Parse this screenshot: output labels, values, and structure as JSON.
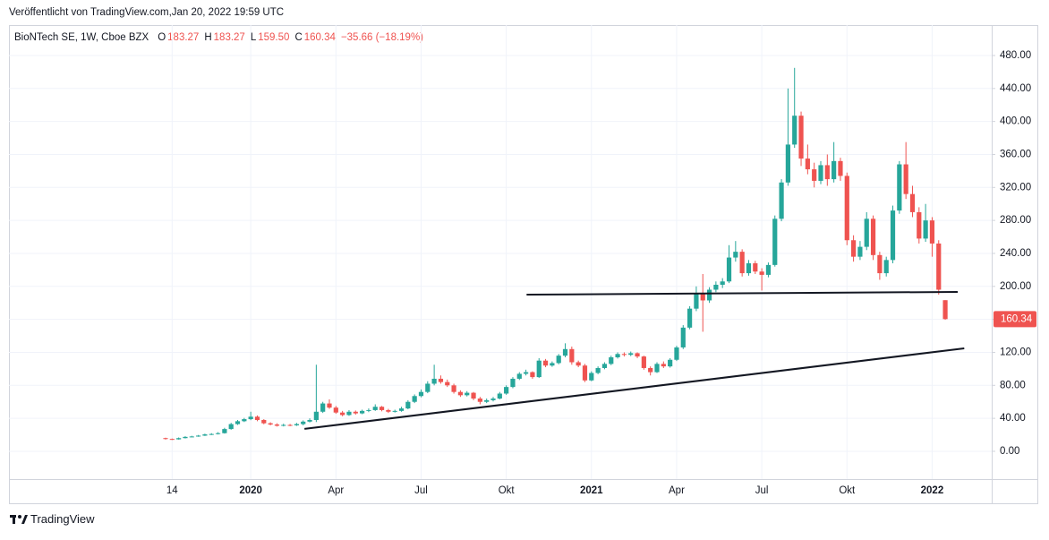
{
  "header": "Veröffentlicht von TradingView.com,Jan 20, 2022 19:59 UTC",
  "footer": "TradingView",
  "chart_data": {
    "type": "candlestick",
    "legend": {
      "name": "BioNTech SE, 1W, Cboe BZX",
      "o": "O",
      "open": "183.27",
      "h": "H",
      "high": "183.27",
      "l": "L",
      "low": "159.50",
      "c": "C",
      "close": "160.34",
      "change": "−35.66 (−18.19%)"
    },
    "categories": [
      null,
      "14",
      null,
      null,
      null,
      null,
      null,
      null,
      null,
      null,
      null,
      null,
      null,
      "2020",
      null,
      null,
      null,
      null,
      null,
      null,
      null,
      null,
      null,
      null,
      null,
      null,
      "Apr",
      null,
      null,
      null,
      null,
      null,
      null,
      null,
      null,
      null,
      null,
      null,
      null,
      "Jul",
      null,
      null,
      null,
      null,
      null,
      null,
      null,
      null,
      null,
      null,
      null,
      null,
      "Okt",
      null,
      null,
      null,
      null,
      null,
      null,
      null,
      null,
      null,
      null,
      null,
      null,
      "2021",
      null,
      null,
      null,
      null,
      null,
      null,
      null,
      null,
      null,
      null,
      null,
      null,
      "Apr",
      null,
      null,
      null,
      null,
      null,
      null,
      null,
      null,
      null,
      null,
      null,
      null,
      "Jul",
      null,
      null,
      null,
      null,
      null,
      null,
      null,
      null,
      null,
      null,
      null,
      null,
      "Okt",
      null,
      null,
      null,
      null,
      null,
      null,
      null,
      null,
      null,
      null,
      null,
      null,
      "2022",
      null,
      null
    ],
    "open": [
      16.0,
      15.0,
      14.5,
      16.0,
      17.5,
      18.0,
      19.0,
      20.5,
      21.0,
      22.0,
      27.0,
      33.0,
      36.5,
      39.0,
      42.0,
      38.0,
      34.0,
      32.5,
      31.0,
      32.0,
      31.5,
      33.0,
      36.0,
      38.0,
      48.0,
      58.0,
      53.0,
      47.0,
      44.0,
      48.0,
      46.0,
      49.0,
      50.0,
      54.0,
      50.0,
      48.0,
      49.0,
      52.0,
      60.0,
      67.0,
      72.0,
      82.0,
      88.0,
      84.0,
      80.0,
      72.0,
      68.0,
      71.0,
      64.0,
      60.0,
      62.0,
      64.0,
      70.0,
      78.0,
      88.0,
      94.0,
      96.0,
      90.0,
      110.0,
      104.0,
      107.0,
      116.0,
      124.0,
      108.0,
      104.0,
      86.0,
      95.0,
      101.0,
      106.0,
      114.0,
      118.0,
      117.0,
      119.0,
      115.0,
      101.0,
      96.0,
      106.0,
      103.0,
      111.0,
      126.0,
      150.0,
      173.0,
      192.0,
      183.0,
      196.0,
      202.0,
      206.0,
      235.0,
      242.0,
      216.0,
      228.0,
      218.0,
      214.0,
      226.0,
      282.0,
      326.0,
      372.0,
      407.0,
      355.0,
      342.0,
      328.0,
      347.0,
      330.0,
      352.0,
      334.0,
      256.0,
      236.0,
      248.0,
      282.0,
      238.0,
      216.0,
      232.0,
      292.0,
      348.0,
      312.0,
      290.0,
      258.0,
      280.0,
      252.0,
      183.27
    ],
    "high": [
      16.5,
      15.5,
      16.8,
      18.3,
      18.8,
      19.8,
      21.4,
      22.0,
      23.2,
      28.5,
      34.5,
      38.0,
      40.5,
      48.0,
      43.5,
      39.0,
      35.2,
      34.0,
      33.5,
      33.2,
      34.5,
      37.5,
      40.0,
      105.0,
      60.0,
      63.0,
      55.0,
      49.0,
      50.0,
      49.5,
      50.5,
      52.0,
      57.0,
      55.0,
      51.5,
      50.5,
      54.0,
      62.0,
      69.0,
      75.0,
      85.0,
      105.0,
      92.0,
      87.0,
      82.0,
      74.0,
      73.0,
      72.0,
      66.0,
      64.0,
      66.0,
      72.0,
      80.0,
      90.0,
      96.0,
      99.0,
      97.0,
      113.0,
      112.0,
      109.0,
      118.0,
      131.0,
      127.0,
      110.0,
      106.0,
      97.0,
      103.0,
      108.0,
      116.0,
      120.0,
      120.0,
      121.0,
      120.0,
      116.0,
      103.0,
      108.0,
      109.0,
      113.0,
      128.0,
      153.0,
      176.0,
      200.0,
      215.0,
      199.0,
      206.0,
      210.0,
      250.0,
      255.0,
      245.0,
      232.0,
      231.0,
      222.0,
      229.0,
      286.0,
      330.0,
      440.0,
      465.0,
      412.0,
      372.0,
      350.0,
      352.0,
      360.0,
      375.0,
      356.0,
      338.0,
      262.0,
      255.0,
      290.0,
      286.0,
      242.0,
      236.0,
      298.0,
      352.0,
      375.0,
      322.0,
      296.0,
      300.0,
      284.0,
      256.0,
      183.27
    ],
    "low": [
      14.2,
      13.8,
      14.2,
      15.6,
      17.0,
      17.6,
      18.6,
      19.8,
      20.4,
      21.5,
      26.2,
      32.0,
      35.5,
      37.8,
      36.5,
      32.8,
      31.5,
      30.0,
      30.2,
      30.5,
      30.8,
      31.5,
      35.0,
      35.5,
      46.5,
      51.5,
      45.5,
      42.5,
      43.0,
      44.5,
      45.0,
      47.5,
      49.0,
      48.5,
      46.5,
      47.0,
      48.0,
      51.0,
      58.5,
      65.5,
      70.5,
      80.0,
      82.0,
      78.0,
      70.0,
      66.0,
      66.5,
      62.0,
      57.0,
      58.5,
      60.5,
      63.0,
      68.5,
      76.5,
      86.5,
      92.0,
      88.0,
      89.0,
      102.0,
      102.5,
      105.5,
      114.0,
      105.0,
      102.0,
      84.0,
      85.0,
      93.5,
      99.5,
      104.5,
      112.5,
      115.0,
      115.5,
      113.0,
      99.0,
      92.0,
      95.0,
      101.0,
      101.5,
      109.5,
      124.0,
      148.0,
      170.0,
      145.0,
      180.0,
      193.0,
      198.0,
      204.0,
      230.0,
      212.0,
      213.0,
      215.0,
      195.0,
      211.0,
      224.0,
      279.0,
      322.0,
      368.0,
      346.0,
      336.0,
      320.0,
      324.0,
      322.0,
      326.0,
      328.0,
      250.0,
      230.0,
      232.0,
      244.0,
      232.0,
      208.0,
      212.0,
      228.0,
      288.0,
      306.0,
      284.0,
      252.0,
      254.0,
      236.0,
      190.0,
      159.5
    ],
    "close": [
      15.0,
      14.5,
      16.0,
      17.5,
      18.0,
      19.0,
      20.5,
      21.0,
      22.0,
      27.0,
      33.0,
      36.5,
      39.0,
      42.0,
      38.0,
      34.0,
      32.5,
      31.0,
      32.0,
      31.5,
      33.0,
      36.0,
      38.0,
      48.0,
      58.0,
      53.0,
      47.0,
      44.0,
      48.0,
      46.0,
      49.0,
      50.0,
      54.0,
      50.0,
      48.0,
      49.0,
      52.0,
      60.0,
      67.0,
      72.0,
      82.0,
      88.0,
      84.0,
      80.0,
      72.0,
      68.0,
      71.0,
      64.0,
      60.0,
      62.0,
      64.0,
      70.0,
      78.0,
      88.0,
      94.0,
      96.0,
      90.0,
      110.0,
      104.0,
      107.0,
      116.0,
      124.0,
      108.0,
      104.0,
      86.0,
      95.0,
      101.0,
      106.0,
      114.0,
      118.0,
      117.0,
      119.0,
      115.0,
      101.0,
      96.0,
      106.0,
      103.0,
      111.0,
      126.0,
      150.0,
      173.0,
      192.0,
      183.0,
      196.0,
      202.0,
      206.0,
      235.0,
      242.0,
      216.0,
      228.0,
      218.0,
      214.0,
      226.0,
      282.0,
      326.0,
      372.0,
      407.0,
      355.0,
      342.0,
      328.0,
      347.0,
      330.0,
      352.0,
      334.0,
      256.0,
      236.0,
      248.0,
      282.0,
      238.0,
      216.0,
      232.0,
      292.0,
      348.0,
      312.0,
      290.0,
      258.0,
      280.0,
      252.0,
      196.0,
      160.34
    ],
    "up_color": "#26a69a",
    "down_color": "#ef5350",
    "ylim": [
      -33.7,
      516.9
    ],
    "yticks": [
      {
        "value": 0,
        "label": "0.00"
      },
      {
        "value": 40,
        "label": "40.00"
      },
      {
        "value": 80,
        "label": "80.00"
      },
      {
        "value": 120,
        "label": "120.00"
      },
      {
        "value": 160,
        "label": "160.00"
      },
      {
        "value": 200,
        "label": "200.00"
      },
      {
        "value": 240,
        "label": "240.00"
      },
      {
        "value": 280,
        "label": "280.00"
      },
      {
        "value": 320,
        "label": "320.00"
      },
      {
        "value": 360,
        "label": "360.00"
      },
      {
        "value": 400,
        "label": "400.00"
      },
      {
        "value": 440,
        "label": "440.00"
      },
      {
        "value": 480,
        "label": "480.00"
      }
    ],
    "grid": true,
    "trendlines": [
      {
        "x": [
          55.1,
          120.9
        ],
        "y": [
          190,
          193.3
        ],
        "color": "#131722"
      },
      {
        "x": [
          21.2,
          121.9
        ],
        "y": [
          27.2,
          124.9
        ],
        "color": "#131722"
      }
    ]
  }
}
